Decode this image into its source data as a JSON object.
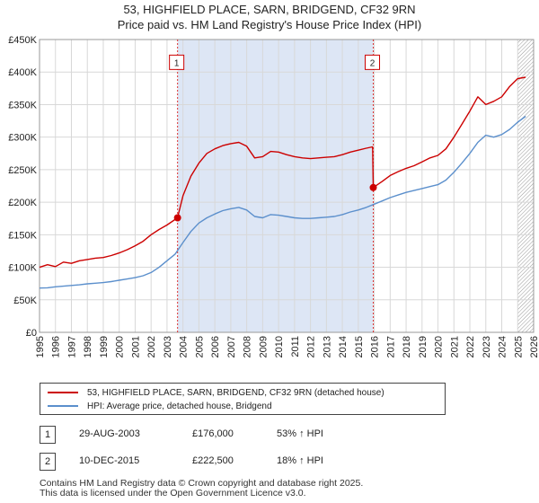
{
  "chart_data": {
    "type": "line",
    "title": "53, HIGHFIELD PLACE, SARN, BRIDGEND, CF32 9RN",
    "subtitle": "Price paid vs. HM Land Registry's House Price Index (HPI)",
    "xlabel": "",
    "ylabel": "",
    "xlim": [
      1995,
      2026
    ],
    "ylim": [
      0,
      450000
    ],
    "y_ticks": [
      {
        "value": 0,
        "label": "£0"
      },
      {
        "value": 50000,
        "label": "£50K"
      },
      {
        "value": 100000,
        "label": "£100K"
      },
      {
        "value": 150000,
        "label": "£150K"
      },
      {
        "value": 200000,
        "label": "£200K"
      },
      {
        "value": 250000,
        "label": "£250K"
      },
      {
        "value": 300000,
        "label": "£300K"
      },
      {
        "value": 350000,
        "label": "£350K"
      },
      {
        "value": 400000,
        "label": "£400K"
      },
      {
        "value": 450000,
        "label": "£450K"
      }
    ],
    "x_ticks": [
      "1995",
      "1996",
      "1997",
      "1998",
      "1999",
      "2000",
      "2001",
      "2002",
      "2003",
      "2004",
      "2005",
      "2006",
      "2007",
      "2008",
      "2009",
      "2010",
      "2011",
      "2012",
      "2013",
      "2014",
      "2015",
      "2016",
      "2017",
      "2018",
      "2019",
      "2020",
      "2021",
      "2022",
      "2023",
      "2024",
      "2025",
      "2026"
    ],
    "grid": true,
    "shaded_region": [
      2003.66,
      2015.94
    ],
    "hatched_after": 2025.0,
    "series": [
      {
        "name": "53, HIGHFIELD PLACE, SARN, BRIDGEND, CF32 9RN (detached house)",
        "color": "#cc0000",
        "x": [
          1995.0,
          1995.5,
          1996.0,
          1996.5,
          1997.0,
          1997.5,
          1998.0,
          1998.5,
          1999.0,
          1999.5,
          2000.0,
          2000.5,
          2001.0,
          2001.5,
          2002.0,
          2002.5,
          2003.0,
          2003.66,
          2004.0,
          2004.5,
          2005.0,
          2005.5,
          2006.0,
          2006.5,
          2007.0,
          2007.5,
          2008.0,
          2008.5,
          2009.0,
          2009.5,
          2010.0,
          2010.5,
          2011.0,
          2011.5,
          2012.0,
          2012.5,
          2013.0,
          2013.5,
          2014.0,
          2014.5,
          2015.0,
          2015.5,
          2015.9,
          2015.94,
          2016.5,
          2017.0,
          2017.5,
          2018.0,
          2018.5,
          2019.0,
          2019.5,
          2020.0,
          2020.5,
          2021.0,
          2021.5,
          2022.0,
          2022.5,
          2023.0,
          2023.5,
          2024.0,
          2024.5,
          2025.0,
          2025.5
        ],
        "values": [
          100000,
          104000,
          101000,
          108000,
          106000,
          110000,
          112000,
          114000,
          115000,
          118000,
          122000,
          127000,
          133000,
          140000,
          150000,
          158000,
          165000,
          176000,
          210000,
          240000,
          260000,
          275000,
          282000,
          287000,
          290000,
          292000,
          286000,
          268000,
          270000,
          278000,
          277000,
          273000,
          270000,
          268000,
          267000,
          268000,
          269000,
          270000,
          273000,
          277000,
          280000,
          283000,
          285000,
          222500,
          232000,
          241000,
          247000,
          252000,
          256000,
          262000,
          268000,
          272000,
          282000,
          300000,
          320000,
          340000,
          362000,
          350000,
          355000,
          362000,
          378000,
          390000,
          392000
        ],
        "annotations": [
          "1",
          "2"
        ]
      },
      {
        "name": "HPI: Average price, detached house, Bridgend",
        "color": "#5b8fcc",
        "x": [
          1995.0,
          1995.5,
          1996.0,
          1996.5,
          1997.0,
          1997.5,
          1998.0,
          1998.5,
          1999.0,
          1999.5,
          2000.0,
          2000.5,
          2001.0,
          2001.5,
          2002.0,
          2002.5,
          2003.0,
          2003.5,
          2004.0,
          2004.5,
          2005.0,
          2005.5,
          2006.0,
          2006.5,
          2007.0,
          2007.5,
          2008.0,
          2008.5,
          2009.0,
          2009.5,
          2010.0,
          2010.5,
          2011.0,
          2011.5,
          2012.0,
          2012.5,
          2013.0,
          2013.5,
          2014.0,
          2014.5,
          2015.0,
          2015.5,
          2016.0,
          2016.5,
          2017.0,
          2017.5,
          2018.0,
          2018.5,
          2019.0,
          2019.5,
          2020.0,
          2020.5,
          2021.0,
          2021.5,
          2022.0,
          2022.5,
          2023.0,
          2023.5,
          2024.0,
          2024.5,
          2025.0,
          2025.5
        ],
        "values": [
          68000,
          68500,
          70000,
          71000,
          72000,
          73000,
          74500,
          75500,
          76500,
          78000,
          80000,
          82000,
          84000,
          87000,
          92000,
          100000,
          110000,
          120000,
          138000,
          155000,
          168000,
          176000,
          182000,
          187000,
          190000,
          192000,
          188000,
          178000,
          176000,
          181000,
          180000,
          178000,
          176000,
          175000,
          175000,
          176000,
          177000,
          178000,
          181000,
          185000,
          188000,
          192000,
          197000,
          202000,
          207000,
          211000,
          215000,
          218000,
          221000,
          224000,
          227000,
          234000,
          246000,
          260000,
          275000,
          292000,
          303000,
          300000,
          304000,
          312000,
          323000,
          332000
        ]
      }
    ],
    "markers": [
      {
        "label": "1",
        "x": 2003.66,
        "y": 176000
      },
      {
        "label": "2",
        "x": 2015.94,
        "y": 222500
      }
    ]
  },
  "legend": {
    "property_label": "53, HIGHFIELD PLACE, SARN, BRIDGEND, CF32 9RN (detached house)",
    "hpi_label": "HPI: Average price, detached house, Bridgend"
  },
  "transactions": [
    {
      "num": "1",
      "date": "29-AUG-2003",
      "price": "£176,000",
      "hpi": "53% ↑ HPI"
    },
    {
      "num": "2",
      "date": "10-DEC-2015",
      "price": "£222,500",
      "hpi": "18% ↑ HPI"
    }
  ],
  "footer": {
    "line1": "Contains HM Land Registry data © Crown copyright and database right 2025.",
    "line2": "This data is licensed under the Open Government Licence v3.0."
  },
  "colors": {
    "property": "#cc0000",
    "hpi": "#5b8fcc",
    "shade": "#dde6f5"
  }
}
